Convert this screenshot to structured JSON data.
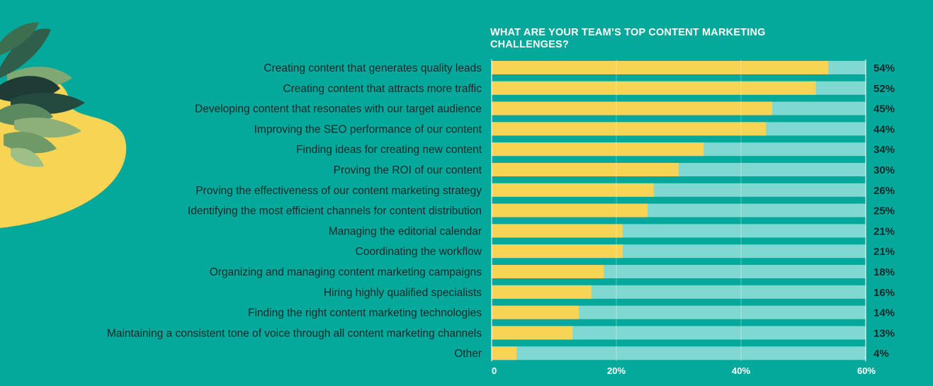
{
  "chart_data": {
    "type": "bar",
    "orientation": "horizontal",
    "title": "WHAT ARE YOUR TEAM’S TOP CONTENT MARKETING CHALLENGES?",
    "xlim": [
      0,
      60
    ],
    "xticks": [
      0,
      20,
      40,
      60
    ],
    "xtick_labels": [
      "0",
      "20%",
      "40%",
      "60%"
    ],
    "grid": true,
    "categories": [
      "Creating content that generates quality leads",
      "Creating content that attracts more traffic",
      "Developing content that resonates with our target audience",
      "Improving the SEO performance of our content",
      "Finding ideas for creating new content",
      "Proving the ROI of our content",
      "Proving the effectiveness of our content marketing strategy",
      "Identifying the most efficient channels for content distribution",
      "Managing the editorial calendar",
      "Coordinating the workflow",
      "Organizing and managing content marketing campaigns",
      "Hiring highly qualified specialists",
      "Finding the right content marketing technologies",
      "Maintaining a consistent tone of voice through all content marketing channels",
      "Other"
    ],
    "values": [
      54,
      52,
      45,
      44,
      34,
      30,
      26,
      25,
      21,
      21,
      18,
      16,
      14,
      13,
      4
    ],
    "value_labels": [
      "54%",
      "52%",
      "45%",
      "44%",
      "34%",
      "30%",
      "26%",
      "25%",
      "21%",
      "21%",
      "18%",
      "16%",
      "14%",
      "13%",
      "4%"
    ],
    "colors": {
      "bar": "#F7D453",
      "track": "#80D8D2",
      "background": "#04A99B",
      "grid": "#ffffff",
      "label": "#0e2a2b",
      "title": "#ffffff"
    }
  }
}
